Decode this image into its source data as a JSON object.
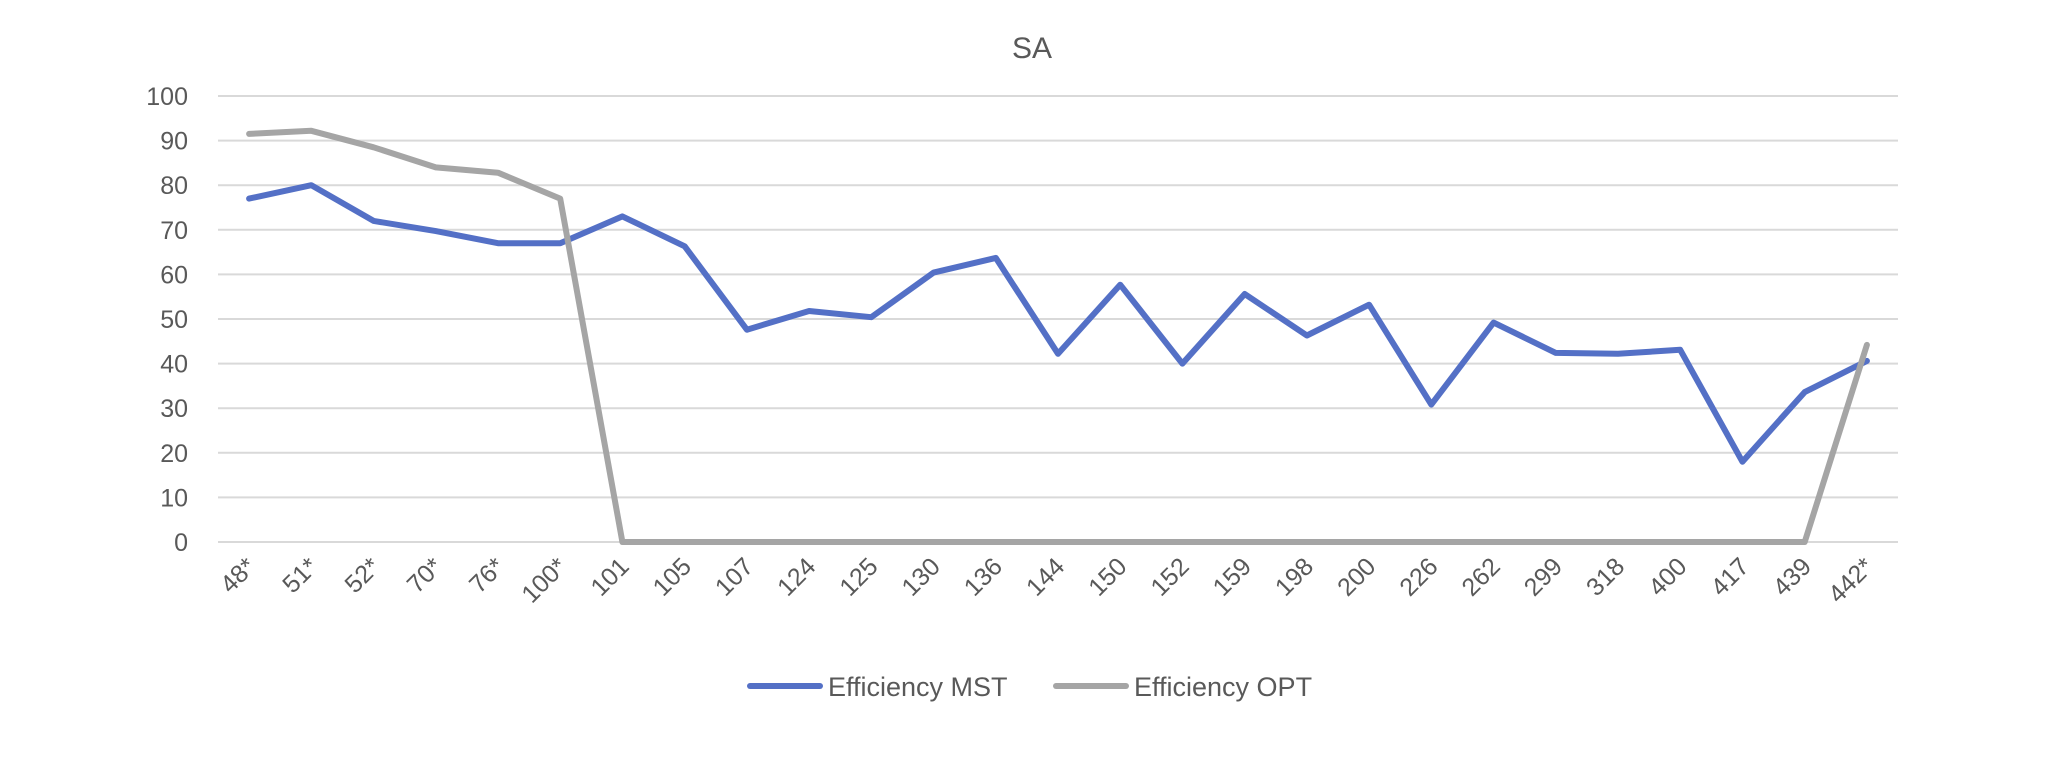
{
  "chart_data": {
    "type": "line",
    "title": "SA",
    "xlabel": "",
    "ylabel": "",
    "categories": [
      "48*",
      "51*",
      "52*",
      "70*",
      "76*",
      "100*",
      "101",
      "105",
      "107",
      "124",
      "125",
      "130",
      "136",
      "144",
      "150",
      "152",
      "159",
      "198",
      "200",
      "226",
      "262",
      "299",
      "318",
      "400",
      "417",
      "439",
      "442*"
    ],
    "ylim": [
      0,
      100
    ],
    "yticks": [
      "0",
      "10",
      "20",
      "30",
      "40",
      "50",
      "60",
      "70",
      "80",
      "90",
      "100"
    ],
    "grid": true,
    "legend_position": "bottom",
    "series": [
      {
        "name": "Efficiency MST",
        "color": "#5470c6",
        "values": [
          77,
          80,
          72,
          69.7,
          67,
          67,
          73,
          66.3,
          47.6,
          51.8,
          50.4,
          60.4,
          63.7,
          42.2,
          57.7,
          40,
          55.6,
          46.3,
          53.2,
          30.8,
          49.2,
          42.4,
          42.2,
          43.1,
          18,
          33.6,
          40.6
        ]
      },
      {
        "name": "Efficiency OPT",
        "color": "#a5a5a5",
        "values": [
          91.5,
          92.2,
          88.5,
          84,
          82.8,
          77,
          0,
          0,
          0,
          0,
          0,
          0,
          0,
          0,
          0,
          0,
          0,
          0,
          0,
          0,
          0,
          0,
          0,
          0,
          0,
          0,
          44.2
        ]
      }
    ]
  }
}
